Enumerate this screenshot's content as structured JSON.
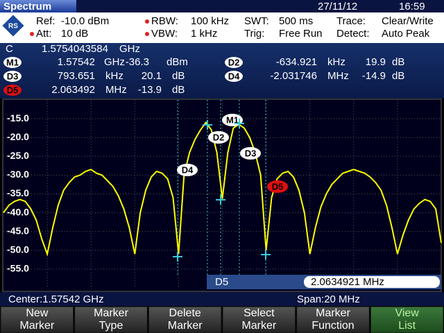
{
  "title_bar": {
    "title": "Spectrum",
    "date": "27/11/12",
    "time": "16:59"
  },
  "settings": [
    {
      "label": "Ref:",
      "value": "-10.0 dBm"
    },
    {
      "label": "Att:",
      "value": "10 dB"
    },
    {
      "label": "RBW:",
      "value": "100 kHz"
    },
    {
      "label": "VBW:",
      "value": "1 kHz"
    },
    {
      "label": "SWT:",
      "value": "500 ms"
    },
    {
      "label": "Trig:",
      "value": "Free Run"
    },
    {
      "label": "Trace:",
      "value": "Clear/Write"
    },
    {
      "label": "Detect:",
      "value": "Auto Peak"
    }
  ],
  "markers": {
    "center": {
      "name": "C",
      "x": "1.5754043584",
      "x_unit": "GHz"
    },
    "rows": [
      {
        "name": "M1",
        "x": "1.57542",
        "x_unit": "GHz",
        "y": "-36.3",
        "y_unit": "dBm"
      },
      {
        "name": "D2",
        "x": "-634.921",
        "x_unit": "kHz",
        "y": "19.9",
        "y_unit": "dB"
      },
      {
        "name": "D3",
        "x": "793.651",
        "x_unit": "kHz",
        "y": "20.1",
        "y_unit": "dB"
      },
      {
        "name": "D4",
        "x": "-2.031746",
        "x_unit": "MHz",
        "y": "-14.9",
        "y_unit": "dB"
      },
      {
        "name": "D5",
        "x": "2.063492",
        "x_unit": "MHz",
        "y": "-13.9",
        "y_unit": "dB"
      }
    ]
  },
  "chart": {
    "ylim": [
      -60,
      -10
    ],
    "yticks": [
      {
        "value": -15,
        "label": "-15.0"
      },
      {
        "value": -20,
        "label": "-20.0"
      },
      {
        "value": -25,
        "label": "-25.0"
      },
      {
        "value": -30,
        "label": "-30.0"
      },
      {
        "value": -35,
        "label": "-35.0"
      },
      {
        "value": -40,
        "label": "-40.0"
      },
      {
        "value": -45,
        "label": "-45.0"
      },
      {
        "value": -50,
        "label": "-50.0"
      },
      {
        "value": -55,
        "label": "-55.0"
      }
    ],
    "trace": {
      "color": "#ffff00",
      "values": [
        -40,
        -38,
        -37,
        -36.5,
        -37,
        -39,
        -42,
        -47,
        -51,
        -44,
        -38,
        -34,
        -32,
        -30.5,
        -30,
        -29,
        -28.5,
        -29.5,
        -30,
        -31.5,
        -33,
        -35.5,
        -39,
        -44,
        -51,
        -40,
        -34,
        -30.5,
        -29,
        -29.5,
        -31,
        -36,
        -51,
        -30,
        -24,
        -20.5,
        -18,
        -16,
        -18,
        -24,
        -36.3,
        -24,
        -17.5,
        -16.5,
        -17.5,
        -20,
        -24,
        -30,
        -50,
        -36,
        -31,
        -29.5,
        -29,
        -30.5,
        -34,
        -40,
        -51,
        -44,
        -38.5,
        -35,
        -32.5,
        -31,
        -29.5,
        -29,
        -28.5,
        -29,
        -29.5,
        -30.5,
        -32,
        -34,
        -38,
        -44,
        -51,
        -46,
        -42,
        -39,
        -37.5,
        -36.5,
        -37,
        -39,
        -48
      ]
    }
  },
  "readout": {
    "marker": "D5",
    "value": "2.0634921 MHz"
  },
  "status": {
    "center": "Center:1.57542 GHz",
    "span": "Span:20 MHz"
  },
  "softkeys": [
    [
      "New",
      "Marker"
    ],
    [
      "Marker",
      "Type"
    ],
    [
      "Delete",
      "Marker"
    ],
    [
      "Select",
      "Marker"
    ],
    [
      "Marker",
      "Function"
    ],
    [
      "View",
      "List"
    ]
  ]
}
